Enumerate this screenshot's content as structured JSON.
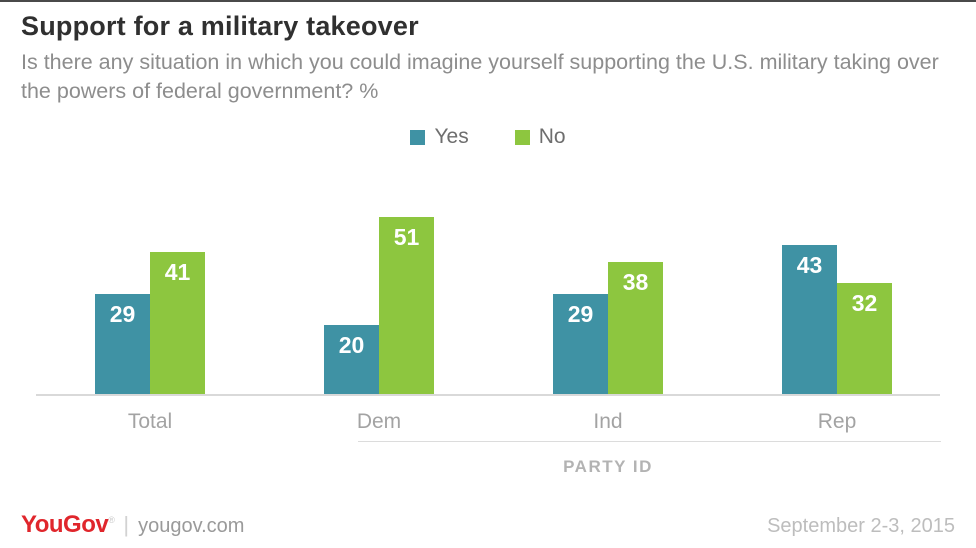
{
  "header": {
    "title": "Support for a military takeover",
    "subtitle": "Is there any situation in which you could imagine yourself supporting the U.S. military taking over the powers of federal government? %"
  },
  "legend": [
    {
      "label": "Yes",
      "color": "#3f92a4"
    },
    {
      "label": "No",
      "color": "#8dc63f"
    }
  ],
  "chart_data": {
    "type": "bar",
    "title": "Support for a military takeover",
    "categories": [
      "Total",
      "Dem",
      "Ind",
      "Rep"
    ],
    "series": [
      {
        "name": "Yes",
        "color": "#3f92a4",
        "values": [
          29,
          20,
          29,
          43
        ]
      },
      {
        "name": "No",
        "color": "#8dc63f",
        "values": [
          41,
          51,
          38,
          32
        ]
      }
    ],
    "xlabel": "PARTY ID",
    "ylabel": "",
    "ylim": [
      0,
      55
    ],
    "grid": false,
    "legend_position": "top",
    "value_labels": "inside-top"
  },
  "footer": {
    "brand": "YouGov",
    "brand_mark": "®",
    "site": "yougov.com",
    "separator": "|",
    "date": "September 2-3, 2015",
    "brand_color": "#e0262c"
  }
}
